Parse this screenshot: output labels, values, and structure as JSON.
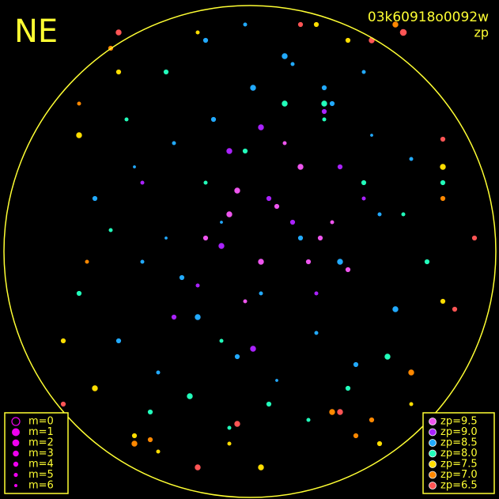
{
  "chart_data": {
    "type": "scatter",
    "title": "NE",
    "image_id": "03k60918o0092w",
    "color_label": "zp",
    "xlim": [
      0,
      631
    ],
    "ylim": [
      631,
      0
    ],
    "series": [
      {
        "name": "zp=9.5",
        "color": "#ee55ee",
        "x": [
          330,
          390,
          300,
          350,
          420,
          260,
          380,
          310,
          440,
          290,
          360,
          405
        ],
        "y": [
          300,
          300,
          390,
          370,
          350,
          330,
          420,
          250,
          290,
          360,
          450,
          330
        ],
        "m": [
          3,
          4,
          3,
          4,
          5,
          4,
          3,
          5,
          4,
          3,
          5,
          4
        ]
      },
      {
        "name": "zp=9.0",
        "color": "#aa22ff",
        "x": [
          340,
          280,
          400,
          430,
          320,
          250,
          370,
          290,
          410,
          460,
          220,
          330,
          180
        ],
        "y": [
          380,
          320,
          260,
          420,
          190,
          270,
          350,
          440,
          490,
          380,
          230,
          470,
          400
        ],
        "m": [
          4,
          3,
          5,
          4,
          3,
          5,
          4,
          3,
          4,
          5,
          4,
          3,
          5
        ]
      },
      {
        "name": "zp=8.5",
        "color": "#22aaff",
        "x": [
          150,
          200,
          250,
          300,
          350,
          400,
          450,
          500,
          180,
          230,
          280,
          330,
          380,
          430,
          480,
          120,
          170,
          220,
          270,
          320,
          370,
          420,
          470,
          520,
          260,
          310,
          360,
          410,
          460,
          210
        ],
        "y": [
          200,
          160,
          230,
          180,
          150,
          210,
          170,
          240,
          300,
          280,
          350,
          260,
          330,
          300,
          360,
          380,
          420,
          450,
          480,
          520,
          550,
          500,
          460,
          430,
          580,
          600,
          560,
          520,
          540,
          330
        ],
        "m": [
          4,
          5,
          3,
          4,
          6,
          5,
          4,
          3,
          5,
          4,
          6,
          5,
          4,
          3,
          5,
          4,
          6,
          5,
          4,
          3,
          5,
          4,
          6,
          5,
          4,
          5,
          3,
          4,
          5,
          6
        ]
      },
      {
        "name": "zp=8.0",
        "color": "#22ffbb",
        "x": [
          100,
          140,
          190,
          240,
          290,
          340,
          390,
          440,
          490,
          540,
          160,
          210,
          260,
          310,
          360,
          410,
          460,
          510,
          560,
          410,
          280
        ],
        "y": [
          260,
          340,
          110,
          130,
          90,
          120,
          100,
          140,
          180,
          300,
          480,
          540,
          400,
          440,
          500,
          480,
          400,
          360,
          400,
          500,
          200
        ],
        "m": [
          4,
          5,
          4,
          3,
          5,
          4,
          5,
          4,
          3,
          4,
          5,
          4,
          5,
          4,
          3,
          5,
          4,
          5,
          4,
          3,
          5
        ]
      },
      {
        "name": "zp=7.5",
        "color": "#ffdd00",
        "x": [
          80,
          120,
          170,
          200,
          330,
          480,
          520,
          560,
          100,
          150,
          250,
          440,
          560,
          400,
          290
        ],
        "y": [
          200,
          140,
          80,
          60,
          40,
          70,
          120,
          250,
          460,
          540,
          590,
          580,
          420,
          600,
          70
        ],
        "m": [
          4,
          3,
          4,
          5,
          3,
          4,
          5,
          4,
          3,
          4,
          5,
          4,
          3,
          4,
          5
        ]
      },
      {
        "name": "zp=7.0",
        "color": "#ff8800",
        "x": [
          170,
          190,
          420,
          470,
          100,
          560,
          520,
          140,
          500,
          450,
          110
        ],
        "y": [
          70,
          75,
          110,
          100,
          500,
          380,
          160,
          570,
          600,
          80,
          300
        ],
        "m": [
          3,
          4,
          3,
          4,
          5,
          4,
          3,
          4,
          3,
          4,
          5
        ]
      },
      {
        "name": "zp=6.5",
        "color": "#ff5555",
        "x": [
          300,
          430,
          510,
          600,
          80,
          150,
          560,
          250,
          380,
          470,
          575
        ],
        "y": [
          95,
          110,
          590,
          330,
          120,
          590,
          455,
          40,
          600,
          580,
          240
        ],
        "m": [
          3,
          3,
          2,
          4,
          4,
          3,
          4,
          3,
          4,
          3,
          4
        ]
      }
    ],
    "size_legend": {
      "labels": [
        "m=0",
        "m=1",
        "m=2",
        "m=3",
        "m=4",
        "m=5",
        "m=6"
      ],
      "m": [
        0,
        1,
        2,
        3,
        4,
        5,
        6
      ],
      "color": "#ee00ee"
    }
  }
}
